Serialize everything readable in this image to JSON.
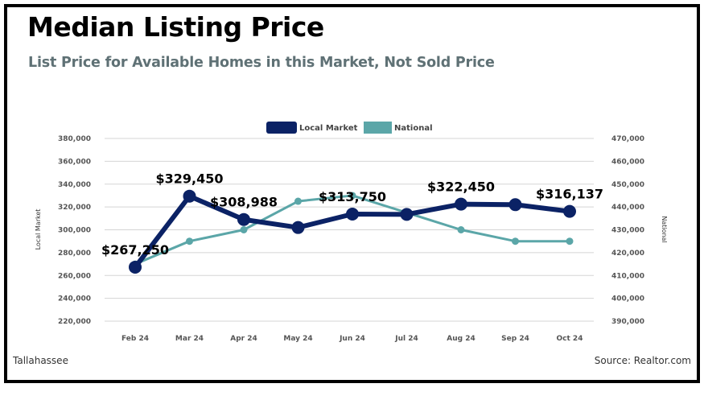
{
  "header": {
    "title": "Median Listing Price",
    "subtitle": "List Price for Available Homes in this Market, Not Sold Price"
  },
  "footer": {
    "location": "Tallahassee",
    "source": "Source: Realtor.com"
  },
  "colors": {
    "local": "#0b2265",
    "national": "#5ba6a8",
    "grid": "#d5d5d5"
  },
  "chart_data": {
    "type": "line",
    "categories": [
      "Feb 24",
      "Mar 24",
      "Apr 24",
      "May 24",
      "Jun 24",
      "Jul 24",
      "Aug 24",
      "Sep 24",
      "Oct 24"
    ],
    "y_left": {
      "label": "Local Market",
      "min": 220000,
      "max": 380000,
      "step": 20000,
      "ticks": [
        "220,000",
        "240,000",
        "260,000",
        "280,000",
        "300,000",
        "320,000",
        "340,000",
        "360,000",
        "380,000"
      ]
    },
    "y_right": {
      "label": "National",
      "min": 390000,
      "max": 470000,
      "step": 10000,
      "ticks": [
        "390,000",
        "400,000",
        "410,000",
        "420,000",
        "430,000",
        "440,000",
        "450,000",
        "460,000",
        "470,000"
      ]
    },
    "legend_position": "top-center",
    "grid": true,
    "series": [
      {
        "name": "Local Market",
        "axis": "left",
        "values": [
          267250,
          329450,
          308988,
          302000,
          313750,
          313500,
          322450,
          322000,
          316137
        ],
        "labels": [
          "$267,250",
          "$329,450",
          "$308,988",
          "",
          "$313,750",
          "",
          "$322,450",
          "",
          "$316,137"
        ]
      },
      {
        "name": "National",
        "axis": "right",
        "values": [
          415000,
          425000,
          430000,
          442500,
          445000,
          437500,
          430000,
          425000,
          425000
        ]
      }
    ]
  }
}
